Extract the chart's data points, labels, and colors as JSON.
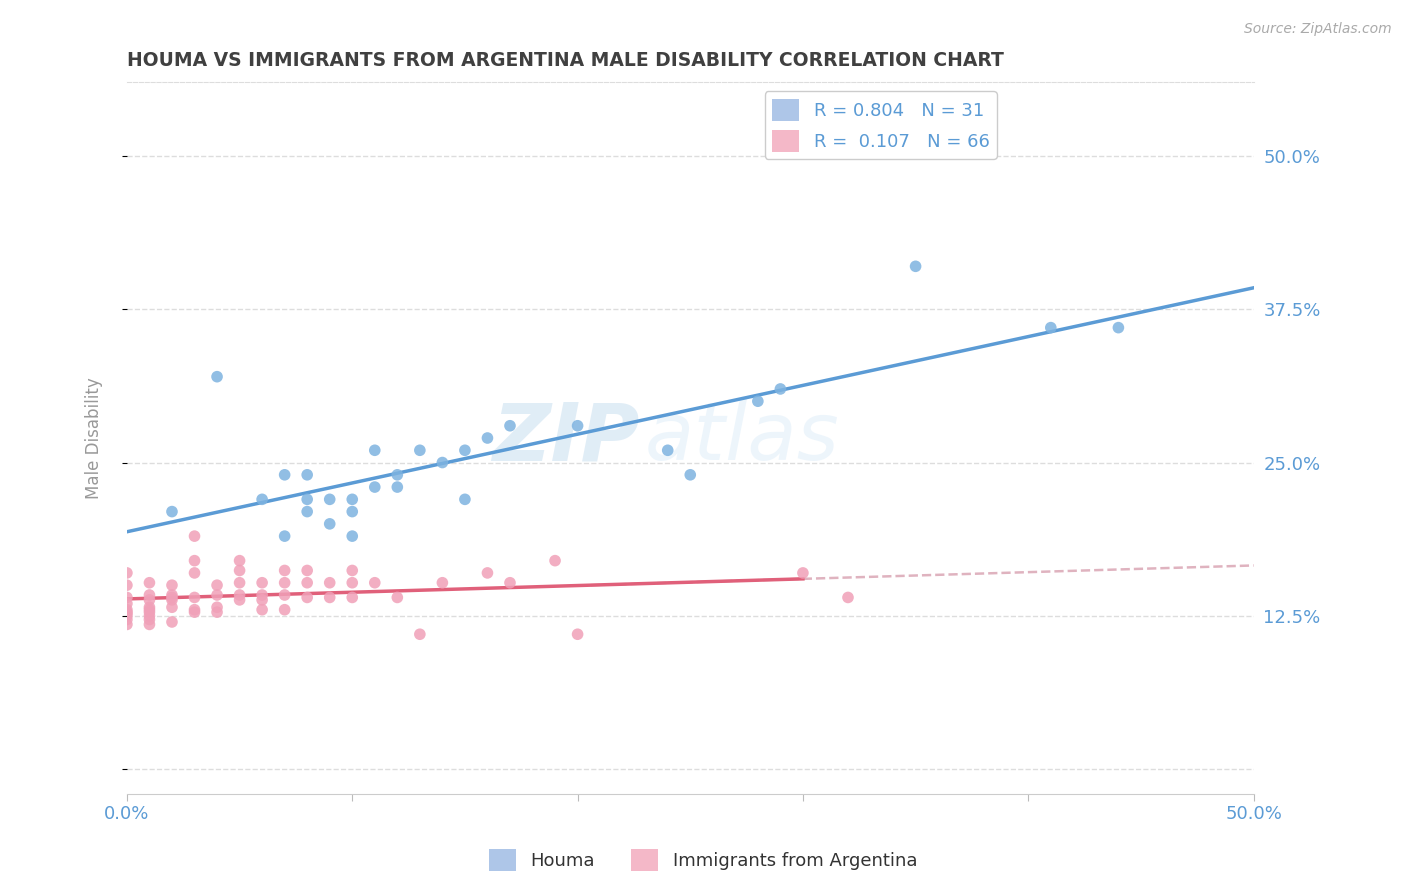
{
  "title": "HOUMA VS IMMIGRANTS FROM ARGENTINA MALE DISABILITY CORRELATION CHART",
  "source": "Source: ZipAtlas.com",
  "ylabel": "Male Disability",
  "xlim": [
    0.0,
    0.5
  ],
  "ylim": [
    -0.02,
    0.56
  ],
  "houma_color": "#7eb3e0",
  "argentina_color": "#f0a0b8",
  "houma_R": 0.804,
  "houma_N": 31,
  "argentina_R": 0.107,
  "argentina_N": 66,
  "houma_scatter": [
    [
      0.02,
      0.21
    ],
    [
      0.04,
      0.32
    ],
    [
      0.06,
      0.22
    ],
    [
      0.07,
      0.24
    ],
    [
      0.07,
      0.19
    ],
    [
      0.08,
      0.24
    ],
    [
      0.08,
      0.21
    ],
    [
      0.08,
      0.22
    ],
    [
      0.09,
      0.2
    ],
    [
      0.09,
      0.22
    ],
    [
      0.1,
      0.19
    ],
    [
      0.1,
      0.22
    ],
    [
      0.1,
      0.21
    ],
    [
      0.11,
      0.23
    ],
    [
      0.11,
      0.26
    ],
    [
      0.12,
      0.23
    ],
    [
      0.12,
      0.24
    ],
    [
      0.13,
      0.26
    ],
    [
      0.14,
      0.25
    ],
    [
      0.15,
      0.26
    ],
    [
      0.15,
      0.22
    ],
    [
      0.16,
      0.27
    ],
    [
      0.17,
      0.28
    ],
    [
      0.2,
      0.28
    ],
    [
      0.24,
      0.26
    ],
    [
      0.25,
      0.24
    ],
    [
      0.28,
      0.3
    ],
    [
      0.29,
      0.31
    ],
    [
      0.35,
      0.41
    ],
    [
      0.41,
      0.36
    ],
    [
      0.44,
      0.36
    ]
  ],
  "argentina_scatter": [
    [
      0.0,
      0.16
    ],
    [
      0.0,
      0.15
    ],
    [
      0.0,
      0.14
    ],
    [
      0.0,
      0.135
    ],
    [
      0.0,
      0.13
    ],
    [
      0.0,
      0.128
    ],
    [
      0.0,
      0.127
    ],
    [
      0.0,
      0.125
    ],
    [
      0.0,
      0.122
    ],
    [
      0.0,
      0.118
    ],
    [
      0.01,
      0.152
    ],
    [
      0.01,
      0.142
    ],
    [
      0.01,
      0.138
    ],
    [
      0.01,
      0.132
    ],
    [
      0.01,
      0.13
    ],
    [
      0.01,
      0.128
    ],
    [
      0.01,
      0.125
    ],
    [
      0.01,
      0.122
    ],
    [
      0.01,
      0.118
    ],
    [
      0.02,
      0.15
    ],
    [
      0.02,
      0.142
    ],
    [
      0.02,
      0.14
    ],
    [
      0.02,
      0.138
    ],
    [
      0.02,
      0.132
    ],
    [
      0.02,
      0.12
    ],
    [
      0.03,
      0.19
    ],
    [
      0.03,
      0.17
    ],
    [
      0.03,
      0.16
    ],
    [
      0.03,
      0.14
    ],
    [
      0.03,
      0.13
    ],
    [
      0.03,
      0.128
    ],
    [
      0.04,
      0.15
    ],
    [
      0.04,
      0.142
    ],
    [
      0.04,
      0.132
    ],
    [
      0.04,
      0.128
    ],
    [
      0.05,
      0.17
    ],
    [
      0.05,
      0.162
    ],
    [
      0.05,
      0.152
    ],
    [
      0.05,
      0.142
    ],
    [
      0.05,
      0.138
    ],
    [
      0.06,
      0.152
    ],
    [
      0.06,
      0.142
    ],
    [
      0.06,
      0.138
    ],
    [
      0.06,
      0.13
    ],
    [
      0.07,
      0.162
    ],
    [
      0.07,
      0.152
    ],
    [
      0.07,
      0.142
    ],
    [
      0.07,
      0.13
    ],
    [
      0.08,
      0.162
    ],
    [
      0.08,
      0.152
    ],
    [
      0.08,
      0.14
    ],
    [
      0.09,
      0.152
    ],
    [
      0.09,
      0.14
    ],
    [
      0.1,
      0.162
    ],
    [
      0.1,
      0.152
    ],
    [
      0.1,
      0.14
    ],
    [
      0.11,
      0.152
    ],
    [
      0.12,
      0.14
    ],
    [
      0.13,
      0.11
    ],
    [
      0.14,
      0.152
    ],
    [
      0.16,
      0.16
    ],
    [
      0.17,
      0.152
    ],
    [
      0.19,
      0.17
    ],
    [
      0.2,
      0.11
    ],
    [
      0.3,
      0.16
    ],
    [
      0.32,
      0.14
    ]
  ],
  "background_color": "#ffffff",
  "grid_color": "#dddddd",
  "axis_label_color": "#5b9bd5",
  "title_color": "#404040",
  "legend_blue_color": "#aec6e8",
  "legend_pink_color": "#f4b8c8",
  "houma_line_color": "#5b9bd5",
  "argentina_line_color": "#e0607a",
  "dashed_line_color": "#d8a0b0",
  "watermark_color": "#ddeef8"
}
